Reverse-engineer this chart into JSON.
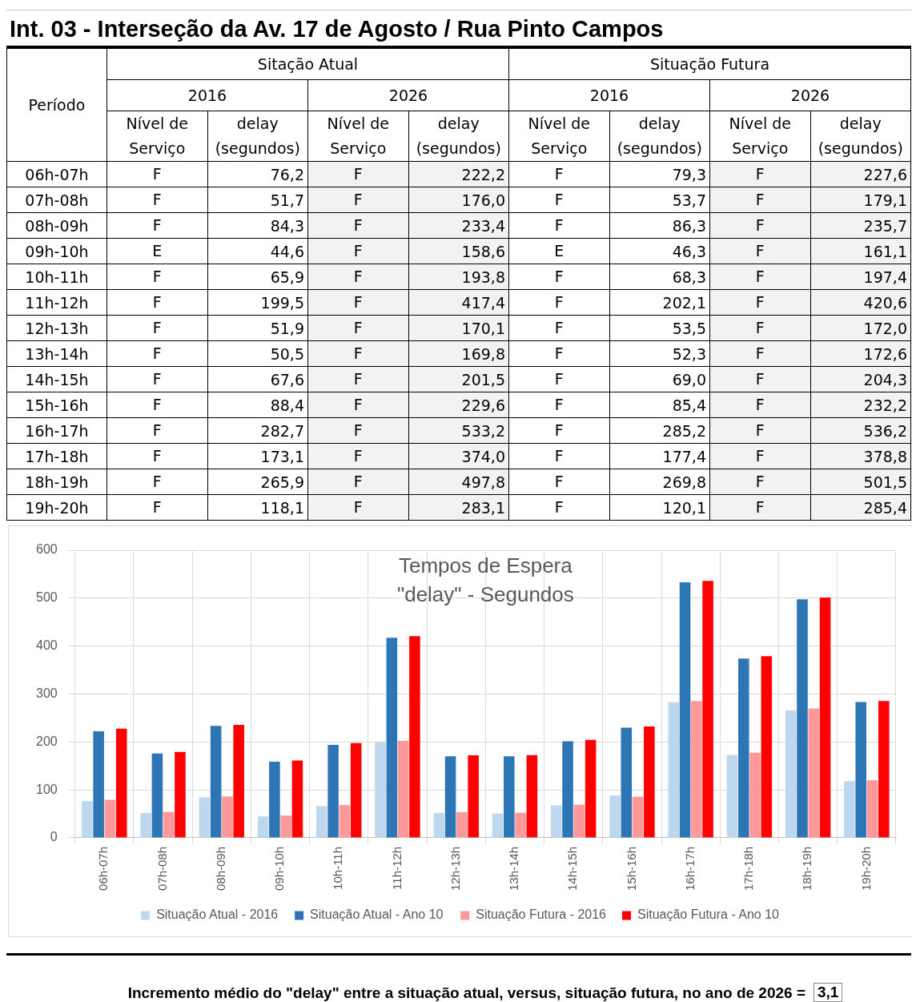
{
  "chart_data": [
    {
      "type": "heatmap",
      "title": "Int. 03 - Interseção da Av. 17 de Agosto / Rua Pinto Campos",
      "ylabel": "Período",
      "annotations": [
        "Sitação Atual",
        "Situação Futura",
        "2016",
        "2026",
        "2016",
        "2026"
      ],
      "categories": [
        "Nível de Serviço",
        "delay (segundos)",
        "Nível de Serviço",
        "delay (segundos)",
        "Nível de Serviço",
        "delay (segundos)",
        "Nível de Serviço",
        "delay (segundos)"
      ],
      "y_categories": [
        "06h-07h",
        "07h-08h",
        "08h-09h",
        "09h-10h",
        "10h-11h",
        "11h-12h",
        "12h-13h",
        "13h-14h",
        "14h-15h",
        "15h-16h",
        "16h-17h",
        "17h-18h",
        "18h-19h",
        "19h-20h"
      ],
      "cells": [
        [
          null,
          null,
          null,
          null,
          null,
          null,
          null,
          null
        ],
        [
          null,
          null,
          null,
          null,
          null,
          null,
          null,
          null
        ],
        [
          null,
          null,
          null,
          null,
          null,
          null,
          null,
          null
        ],
        [
          null,
          null,
          null,
          null,
          null,
          null,
          null,
          null
        ],
        [
          null,
          null,
          null,
          null,
          null,
          null,
          null,
          null
        ],
        [
          null,
          null,
          null,
          null,
          null,
          null,
          null,
          null
        ],
        [
          null,
          null,
          null,
          null,
          null,
          null,
          null,
          null
        ],
        [
          null,
          null,
          null,
          null,
          null,
          null,
          null,
          null
        ],
        [
          null,
          null,
          null,
          null,
          null,
          null,
          null,
          null
        ],
        [
          null,
          null,
          null,
          null,
          null,
          null,
          null,
          null
        ],
        [
          null,
          null,
          null,
          null,
          null,
          null,
          null,
          null
        ],
        [
          null,
          null,
          null,
          null,
          null,
          null,
          null,
          null
        ],
        [
          null,
          null,
          null,
          null,
          null,
          null,
          null,
          null
        ],
        [
          null,
          null,
          null,
          null,
          null,
          null,
          null,
          null
        ]
      ],
      "cell_labels": [
        [
          "F",
          "76,2",
          "F",
          "222,2",
          "F",
          "79,3",
          "F",
          "227,6"
        ],
        [
          "F",
          "51,7",
          "F",
          "176,0",
          "F",
          "53,7",
          "F",
          "179,1"
        ],
        [
          "F",
          "84,3",
          "F",
          "233,4",
          "F",
          "86,3",
          "F",
          "235,7"
        ],
        [
          "E",
          "44,6",
          "F",
          "158,6",
          "E",
          "46,3",
          "F",
          "161,1"
        ],
        [
          "F",
          "65,9",
          "F",
          "193,8",
          "F",
          "68,3",
          "F",
          "197,4"
        ],
        [
          "F",
          "199,5",
          "F",
          "417,4",
          "F",
          "202,1",
          "F",
          "420,6"
        ],
        [
          "F",
          "51,9",
          "F",
          "170,1",
          "F",
          "53,5",
          "F",
          "172,0"
        ],
        [
          "F",
          "50,5",
          "F",
          "169,8",
          "F",
          "52,3",
          "F",
          "172,6"
        ],
        [
          "F",
          "67,6",
          "F",
          "201,5",
          "F",
          "69,0",
          "F",
          "204,3"
        ],
        [
          "F",
          "88,4",
          "F",
          "229,6",
          "F",
          "85,4",
          "F",
          "232,2"
        ],
        [
          "F",
          "282,7",
          "F",
          "533,2",
          "F",
          "285,2",
          "F",
          "536,2"
        ],
        [
          "F",
          "173,1",
          "F",
          "374,0",
          "F",
          "177,4",
          "F",
          "378,8"
        ],
        [
          "F",
          "265,9",
          "F",
          "497,8",
          "F",
          "269,8",
          "F",
          "501,5"
        ],
        [
          "F",
          "118,1",
          "F",
          "283,1",
          "F",
          "120,1",
          "F",
          "285,4"
        ]
      ]
    },
    {
      "type": "bar",
      "title": "Tempos de Espera\n\"delay\" - Segundos",
      "categories": [
        "06h-07h",
        "07h-08h",
        "08h-09h",
        "09h-10h",
        "10h-11h",
        "11h-12h",
        "12h-13h",
        "13h-14h",
        "14h-15h",
        "15h-16h",
        "16h-17h",
        "17h-18h",
        "18h-19h",
        "19h-20h"
      ],
      "series": [
        {
          "name": "Situação Atual - 2016",
          "color": "#bdd7ee",
          "values": [
            76.2,
            51.7,
            84.3,
            44.6,
            65.9,
            199.5,
            51.9,
            50.5,
            67.6,
            88.4,
            282.7,
            173.1,
            265.9,
            118.1
          ]
        },
        {
          "name": "Situação Atual - Ano 10",
          "color": "#2e75b6",
          "values": [
            222.2,
            176.0,
            233.4,
            158.6,
            193.8,
            417.4,
            170.1,
            169.8,
            201.5,
            229.6,
            533.2,
            374.0,
            497.8,
            283.1
          ]
        },
        {
          "name": "Situação Futura - 2016",
          "color": "#ff9999",
          "values": [
            79.3,
            53.7,
            86.3,
            46.3,
            68.3,
            202.1,
            53.5,
            52.3,
            69.0,
            85.4,
            285.2,
            177.4,
            269.8,
            120.1
          ]
        },
        {
          "name": "Situação Futura - Ano 10",
          "color": "#ff0000",
          "values": [
            227.6,
            179.1,
            235.7,
            161.1,
            197.4,
            420.6,
            172.0,
            172.6,
            204.3,
            232.2,
            536.2,
            378.8,
            501.5,
            285.4
          ]
        }
      ],
      "ylim": [
        0,
        600
      ],
      "yticks": [
        0,
        100,
        200,
        300,
        400,
        500,
        600
      ],
      "grid": true,
      "legend": "bottom",
      "annotations": [
        "Incremento médio do \"delay\" entre a situação atual, versus, situação futura, no ano de 2026 =",
        "3,1"
      ]
    }
  ]
}
